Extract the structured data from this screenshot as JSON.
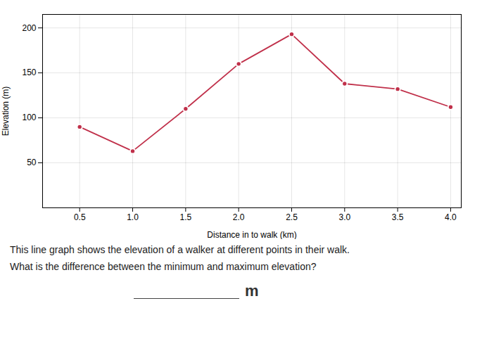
{
  "chart_data": {
    "type": "line",
    "x": [
      0.5,
      1.0,
      1.5,
      2.0,
      2.5,
      3.0,
      3.5,
      4.0
    ],
    "values": [
      90,
      63,
      110,
      160,
      193,
      138,
      132,
      112
    ],
    "color": "#c0304a",
    "marker": "circle",
    "xlabel": "Distance in to walk (km)",
    "ylabel": "Elevation (m)",
    "xlim": [
      0.15,
      4.1
    ],
    "ylim": [
      0,
      215
    ],
    "xticks": [
      0.5,
      {
        "value": 1,
        "label": "1.0"
      },
      1.5,
      {
        "value": 2,
        "label": "2.0"
      },
      2.5,
      {
        "value": 3,
        "label": "3.0"
      },
      3.5,
      {
        "value": 4,
        "label": "4.0"
      }
    ],
    "yticks": [
      50,
      100,
      150,
      200
    ],
    "grid": true,
    "annotations": [
      "This line graph shows the elevation of a walker at different points in their walk.",
      "What is the difference between the minimum and maximum elevation?",
      "m"
    ]
  }
}
